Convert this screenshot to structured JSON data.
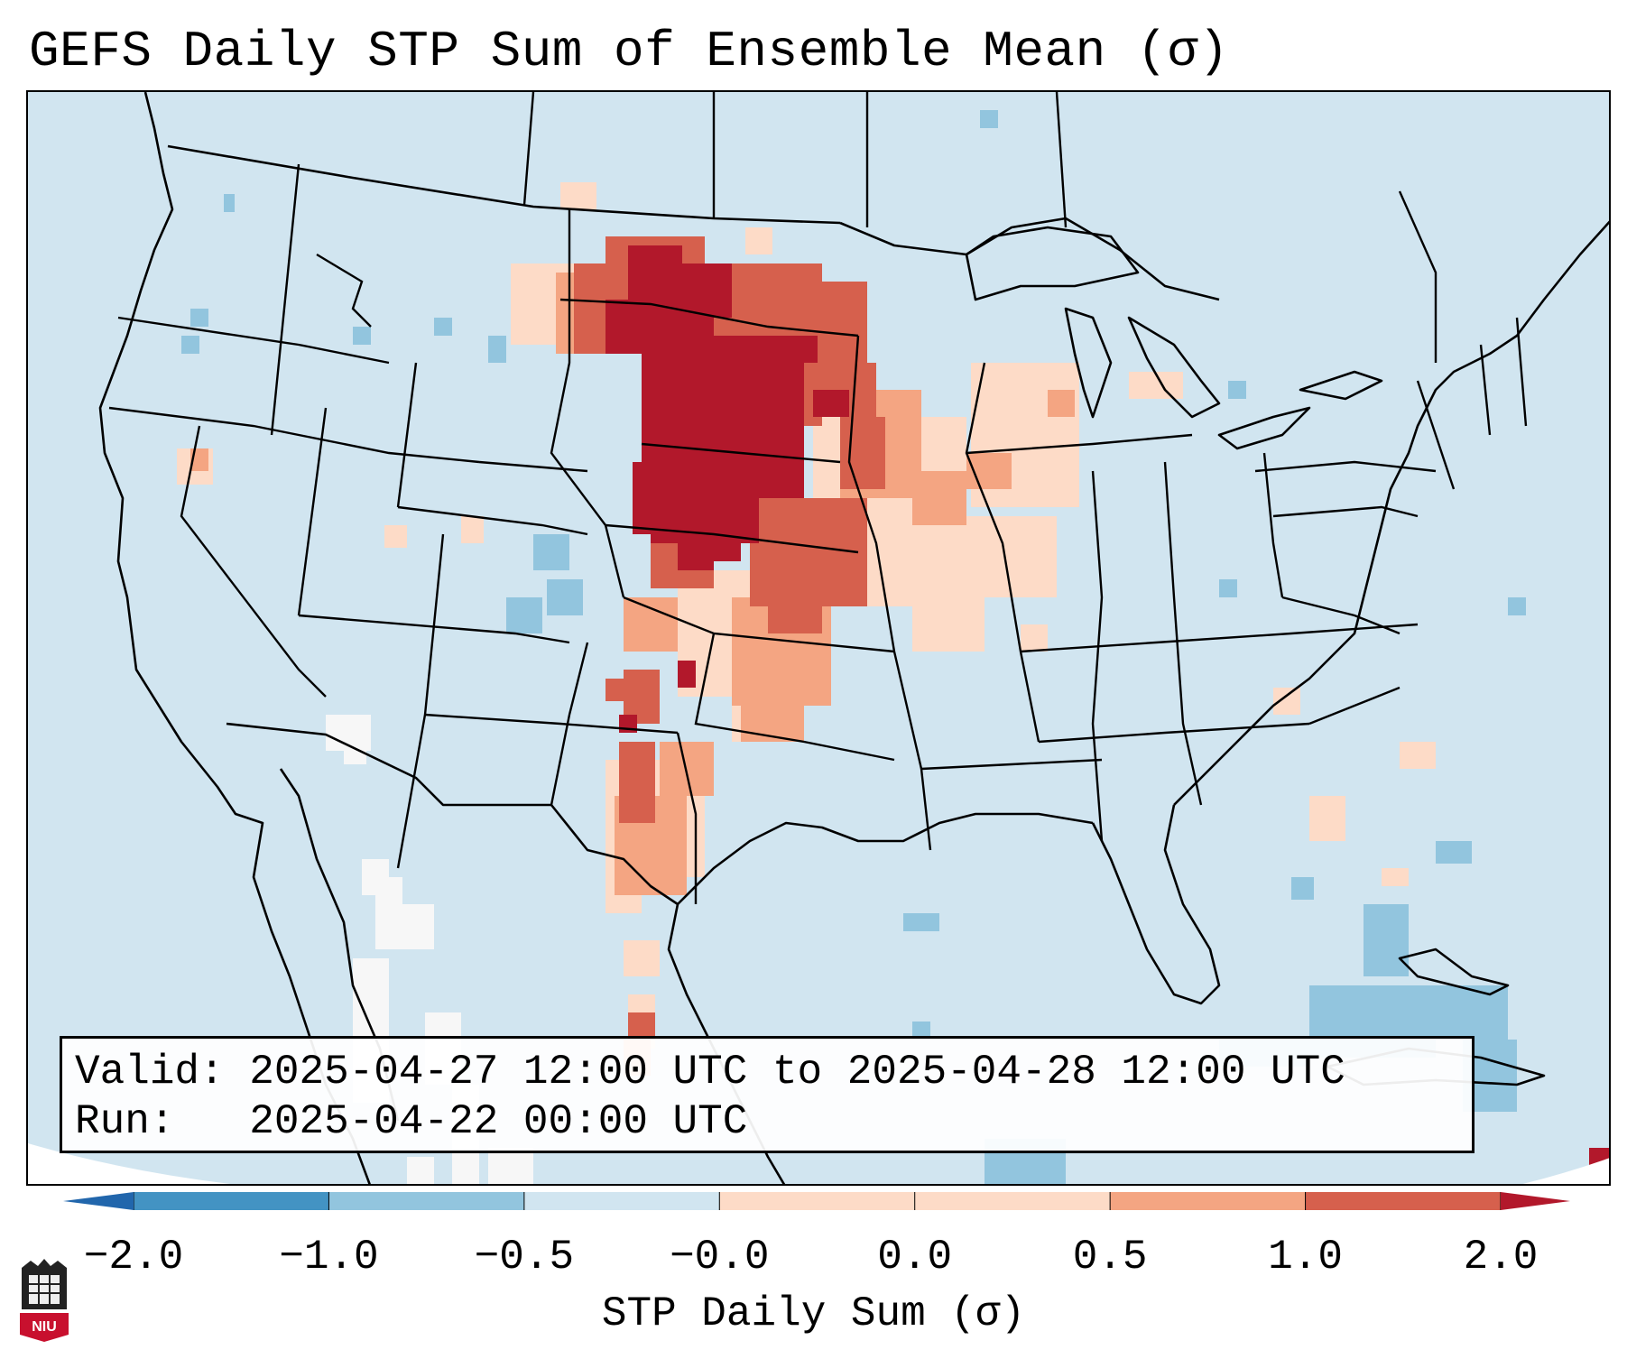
{
  "title": "GEFS Daily STP Sum of Ensemble Mean (σ)",
  "info": {
    "valid_label": "Valid:",
    "valid_value": "2025-04-27 12:00 UTC to 2025-04-28 12:00 UTC",
    "run_label": "Run:",
    "run_value": "2025-04-22 00:00 UTC"
  },
  "colorbar": {
    "label": "STP Daily Sum (σ)",
    "ticks": [
      "−2.0",
      "−1.0",
      "−0.5",
      "−0.0",
      "0.0",
      "0.5",
      "1.0",
      "2.0"
    ],
    "colors": [
      "#2166ac",
      "#4393c3",
      "#92c5de",
      "#d1e5f0",
      "#fddbc7",
      "#f4a582",
      "#d6604d",
      "#b2182b"
    ],
    "extend": "both"
  },
  "map": {
    "region": "Contiguous United States",
    "background_color": "#d1e5f0",
    "anomaly_colors": {
      "strong_positive": "#b2182b",
      "positive": "#d6604d",
      "weak_positive": "#f4a582",
      "slight_positive": "#fddbc7",
      "near_zero": "#f7f7f7",
      "slight_negative": "#92c5de"
    }
  },
  "logo": {
    "text": "NIU",
    "color": "#c8102e"
  }
}
